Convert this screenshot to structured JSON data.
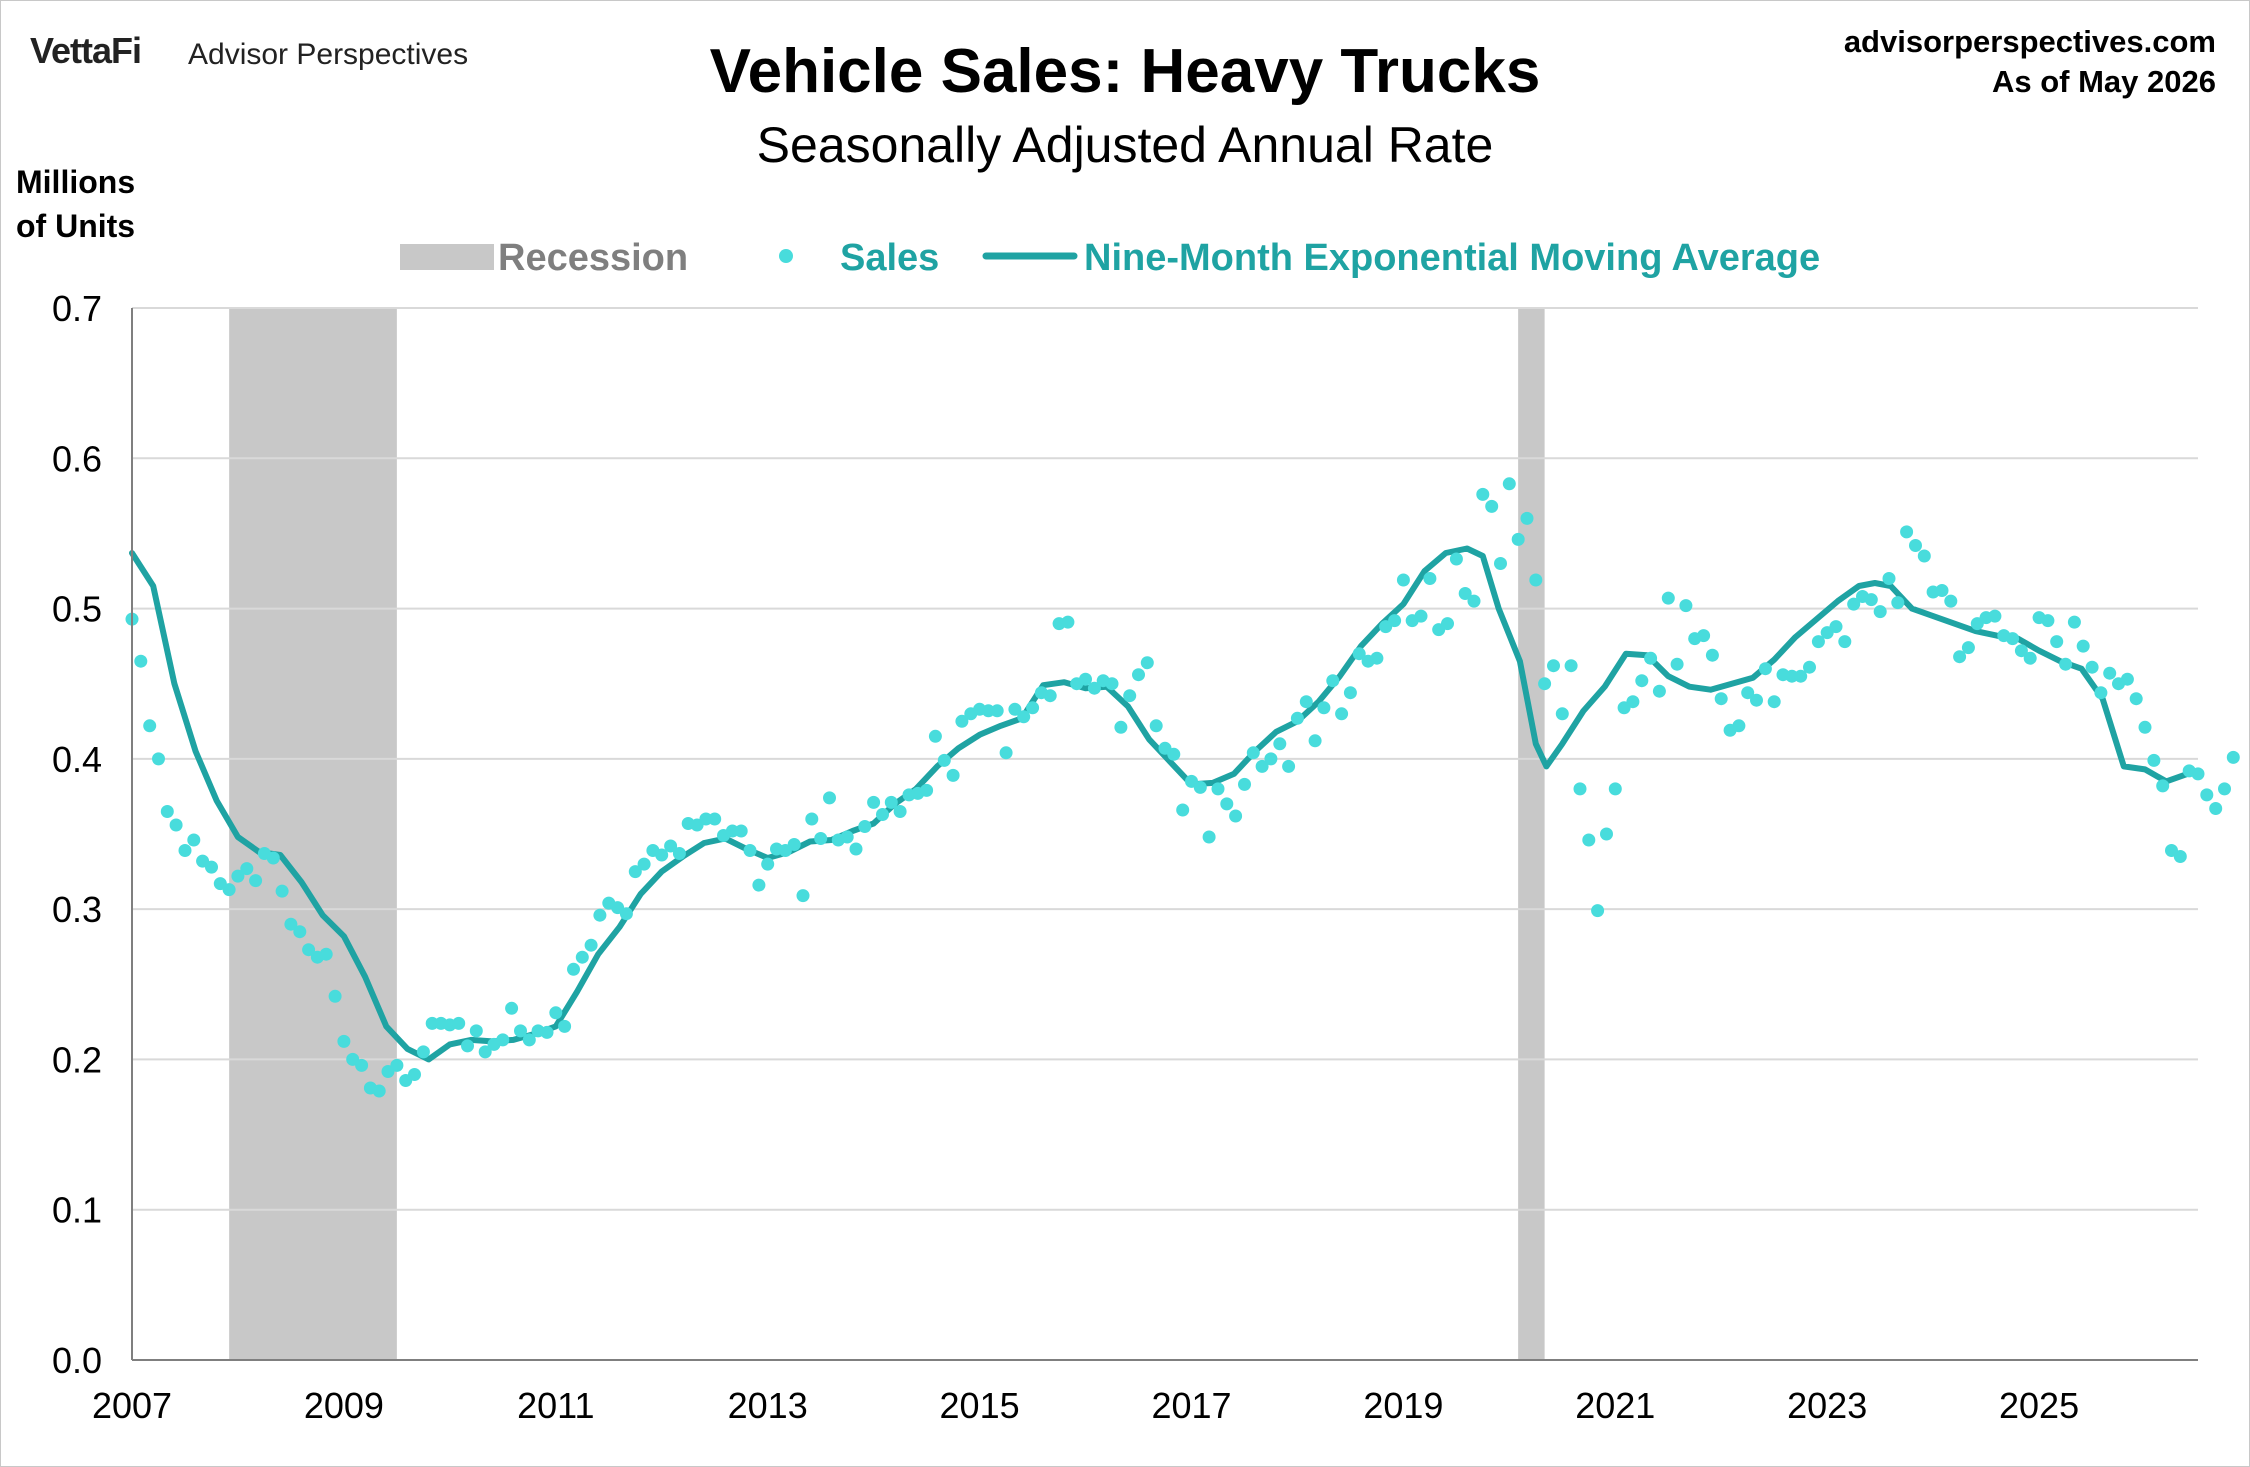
{
  "header": {
    "brand": "VettaFi",
    "brand_sub": "Advisor Perspectives",
    "title": "Vehicle Sales: Heavy Trucks",
    "subtitle": "Seasonally Adjusted Annual Rate",
    "source_line1": "advisorperspectives.com",
    "source_line2": "As of May 2026",
    "ylabel_line1": "Millions",
    "ylabel_line2": "of Units"
  },
  "colors": {
    "recession": "#c8c8c8",
    "sales": "#48dcdc",
    "ema": "#1fa3a3",
    "grid": "#d9d9d9",
    "axis": "#7f7f7f",
    "legend_recession_text": "#7f7f7f",
    "legend_series_text": "#1fa3a3"
  },
  "chart_data": {
    "type": "scatter",
    "title": "Vehicle Sales: Heavy Trucks",
    "subtitle": "Seasonally Adjusted Annual Rate",
    "ylabel": "Millions of Units",
    "xlabel": "",
    "xlim": [
      2007.0,
      2026.5
    ],
    "ylim": [
      0,
      0.7
    ],
    "yticks": [
      "0.0",
      "0.1",
      "0.2",
      "0.3",
      "0.4",
      "0.5",
      "0.6",
      "0.7"
    ],
    "xticks": [
      "2007",
      "2009",
      "2011",
      "2013",
      "2015",
      "2017",
      "2019",
      "2021",
      "2023",
      "2025"
    ],
    "grid": true,
    "legend_position": "top",
    "legend": {
      "recession": "Recession",
      "sales": "Sales",
      "ema": "Nine-Month Exponential Moving Average"
    },
    "recessions": [
      [
        2007.917,
        2009.5
      ],
      [
        2020.083,
        2020.333
      ]
    ],
    "series": [
      {
        "name": "Sales",
        "kind": "scatter",
        "start": 2007.0,
        "step_months": 1,
        "values": [
          0.493,
          0.465,
          0.422,
          0.4,
          0.365,
          0.356,
          0.339,
          0.346,
          0.332,
          0.328,
          0.317,
          0.313,
          0.322,
          0.327,
          0.319,
          0.337,
          0.334,
          0.312,
          0.29,
          0.285,
          0.273,
          0.268,
          0.27,
          0.242,
          0.212,
          0.2,
          0.196,
          0.181,
          0.179,
          0.192,
          0.196,
          0.186,
          0.19,
          0.205,
          0.224,
          0.224,
          0.223,
          0.224,
          0.209,
          0.219,
          0.205,
          0.21,
          0.213,
          0.234,
          0.219,
          0.213,
          0.219,
          0.218,
          0.231,
          0.222,
          0.26,
          0.268,
          0.276,
          0.296,
          0.304,
          0.301,
          0.297,
          0.325,
          0.33,
          0.339,
          0.336,
          0.342,
          0.337,
          0.357,
          0.356,
          0.36,
          0.36,
          0.349,
          0.352,
          0.352,
          0.339,
          0.316,
          0.33,
          0.34,
          0.339,
          0.343,
          0.309,
          0.36,
          0.347,
          0.374,
          0.346,
          0.348,
          0.34,
          0.355,
          0.371,
          0.363,
          0.371,
          0.365,
          0.376,
          0.377,
          0.379,
          0.415,
          0.399,
          0.389,
          0.425,
          0.43,
          0.433,
          0.432,
          0.432,
          0.404,
          0.433,
          0.428,
          0.434,
          0.444,
          0.442,
          0.49,
          0.491,
          0.45,
          0.453,
          0.447,
          0.452,
          0.45,
          0.421,
          0.442,
          0.456,
          0.464,
          0.422,
          0.407,
          0.403,
          0.366,
          0.385,
          0.381,
          0.348,
          0.38,
          0.37,
          0.362,
          0.383,
          0.404,
          0.395,
          0.4,
          0.41,
          0.395,
          0.427,
          0.438,
          0.412,
          0.434,
          0.452,
          0.43,
          0.444,
          0.47,
          0.465,
          0.467,
          0.488,
          0.492,
          0.519,
          0.492,
          0.495,
          0.52,
          0.486,
          0.49,
          0.533,
          0.51,
          0.505,
          0.576,
          0.568,
          0.53,
          0.583,
          0.546,
          0.56,
          0.519,
          0.45,
          0.462,
          0.43,
          0.462,
          0.38,
          0.346,
          0.299,
          0.35,
          0.38,
          0.434,
          0.438,
          0.452,
          0.467,
          0.445,
          0.507,
          0.463,
          0.502,
          0.48,
          0.482,
          0.469,
          0.44,
          0.419,
          0.422,
          0.444,
          0.439,
          0.46,
          0.438,
          0.456,
          0.455,
          0.455,
          0.461,
          0.478,
          0.484,
          0.488,
          0.478,
          0.503,
          0.508,
          0.506,
          0.498,
          0.52,
          0.504,
          0.551,
          0.542,
          0.535,
          0.511,
          0.512,
          0.505,
          0.468,
          0.474,
          0.49,
          0.494,
          0.495,
          0.482,
          0.48,
          0.472,
          0.467,
          0.494,
          0.492,
          0.478,
          0.463,
          0.491,
          0.475,
          0.461,
          0.444,
          0.457,
          0.45,
          0.453,
          0.44,
          0.421,
          0.399,
          0.382,
          0.339,
          0.335,
          0.392,
          0.39,
          0.376,
          0.367,
          0.38,
          0.401
        ]
      },
      {
        "name": "Nine-Month Exponential Moving Average",
        "kind": "line",
        "x": [
          2007.0,
          2007.2,
          2007.4,
          2007.6,
          2007.8,
          2008.0,
          2008.2,
          2008.4,
          2008.6,
          2008.8,
          2009.0,
          2009.2,
          2009.4,
          2009.6,
          2009.8,
          2010.0,
          2010.2,
          2010.4,
          2010.6,
          2010.8,
          2011.0,
          2011.2,
          2011.4,
          2011.6,
          2011.8,
          2012.0,
          2012.2,
          2012.4,
          2012.6,
          2012.8,
          2013.0,
          2013.2,
          2013.4,
          2013.6,
          2013.8,
          2014.0,
          2014.2,
          2014.4,
          2014.6,
          2014.8,
          2015.0,
          2015.2,
          2015.4,
          2015.6,
          2015.8,
          2016.0,
          2016.2,
          2016.4,
          2016.6,
          2016.8,
          2017.0,
          2017.2,
          2017.4,
          2017.6,
          2017.8,
          2018.0,
          2018.2,
          2018.4,
          2018.6,
          2018.8,
          2019.0,
          2019.2,
          2019.4,
          2019.6,
          2019.75,
          2019.9,
          2020.1,
          2020.25,
          2020.35,
          2020.5,
          2020.7,
          2020.9,
          2021.1,
          2021.3,
          2021.5,
          2021.7,
          2021.9,
          2022.1,
          2022.3,
          2022.5,
          2022.7,
          2022.9,
          2023.1,
          2023.3,
          2023.45,
          2023.6,
          2023.8,
          2024.0,
          2024.2,
          2024.4,
          2024.6,
          2024.8,
          2025.0,
          2025.2,
          2025.4,
          2025.6,
          2025.8,
          2026.0,
          2026.2,
          2026.4
        ],
        "values": [
          0.537,
          0.515,
          0.45,
          0.405,
          0.372,
          0.348,
          0.338,
          0.336,
          0.318,
          0.296,
          0.282,
          0.255,
          0.222,
          0.207,
          0.2,
          0.21,
          0.213,
          0.212,
          0.213,
          0.217,
          0.222,
          0.245,
          0.27,
          0.288,
          0.31,
          0.325,
          0.335,
          0.344,
          0.347,
          0.34,
          0.334,
          0.338,
          0.345,
          0.346,
          0.352,
          0.357,
          0.37,
          0.38,
          0.395,
          0.407,
          0.416,
          0.422,
          0.427,
          0.449,
          0.451,
          0.447,
          0.448,
          0.435,
          0.413,
          0.398,
          0.383,
          0.384,
          0.39,
          0.405,
          0.418,
          0.425,
          0.438,
          0.455,
          0.475,
          0.49,
          0.503,
          0.525,
          0.537,
          0.54,
          0.535,
          0.5,
          0.465,
          0.41,
          0.395,
          0.41,
          0.432,
          0.448,
          0.47,
          0.469,
          0.455,
          0.448,
          0.446,
          0.45,
          0.454,
          0.466,
          0.481,
          0.493,
          0.505,
          0.515,
          0.517,
          0.515,
          0.5,
          0.495,
          0.49,
          0.485,
          0.482,
          0.48,
          0.472,
          0.465,
          0.46,
          0.44,
          0.395,
          0.393,
          0.385,
          0.39
        ]
      }
    ]
  }
}
